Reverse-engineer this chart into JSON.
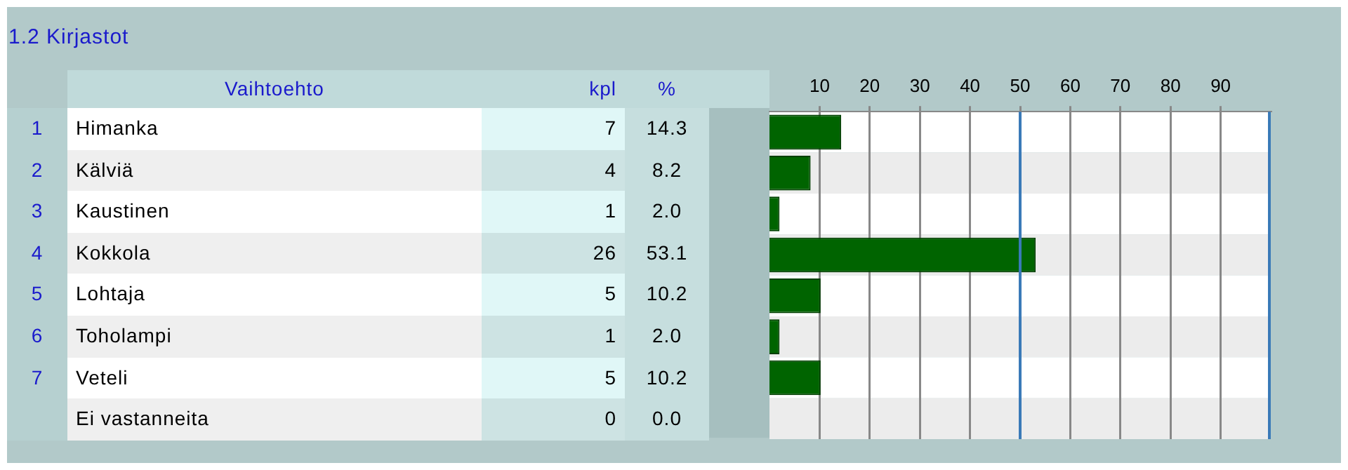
{
  "chart_data": {
    "type": "bar",
    "orientation": "horizontal",
    "title": "1.2 Kirjastot",
    "categories": [
      "Himanka",
      "Kälviä",
      "Kaustinen",
      "Kokkola",
      "Lohtaja",
      "Toholampi",
      "Veteli",
      "Ei vastanneita"
    ],
    "values": [
      14.3,
      8.2,
      2.0,
      53.1,
      10.2,
      2.0,
      10.2,
      0.0
    ],
    "value_labels": [
      "14.3",
      "8.2",
      "2.0",
      "53.1",
      "10.2",
      "2.0",
      "10.2",
      "0.0"
    ],
    "color": "#006400",
    "x2lim": [
      0,
      100
    ],
    "x2ticks": [
      10,
      20,
      30,
      40,
      50,
      60,
      70,
      80,
      90
    ],
    "grid": "x",
    "ref_lines": [
      {
        "axis": "x2",
        "value": 50,
        "color": "#3a7ab8"
      },
      {
        "axis": "x2",
        "value": 100,
        "color": "#3a7ab8"
      }
    ],
    "annotations": [
      "Vaihtoehto",
      "kpl",
      "%",
      "1",
      "7",
      "2",
      "4",
      "3",
      "1",
      "4",
      "26",
      "5",
      "5",
      "6",
      "1",
      "7",
      "5",
      "0"
    ]
  }
}
